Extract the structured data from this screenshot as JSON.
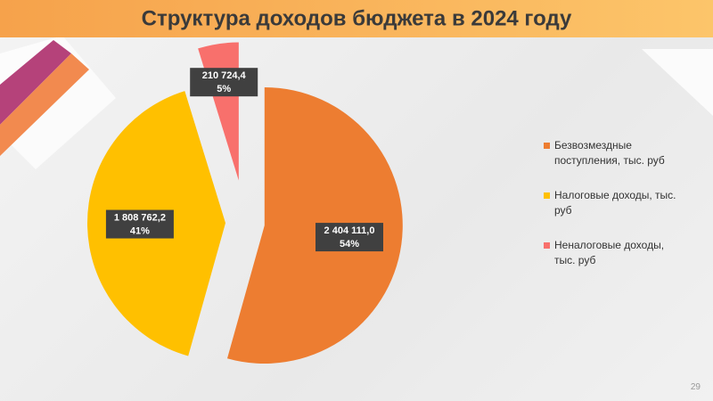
{
  "chart_data": {
    "type": "pie",
    "title": "Структура доходов бюджета в 2024 году",
    "categories": [
      "Безвозмездные поступления, тыс. руб",
      "Налоговые доходы, тыс. руб",
      "Неналоговые доходы, тыс. руб"
    ],
    "values": [
      2404111.0,
      1808762.2,
      210724.4
    ],
    "value_labels": [
      "2 404 111,0",
      "1 808 762,2",
      "210 724,4"
    ],
    "percents": [
      54,
      41,
      5
    ],
    "percent_labels": [
      "54%",
      "41%",
      "5%"
    ],
    "colors": [
      "#ED7D31",
      "#FFC000",
      "#F8706C"
    ],
    "legend": "right"
  },
  "slide": {
    "page_number": "29"
  }
}
